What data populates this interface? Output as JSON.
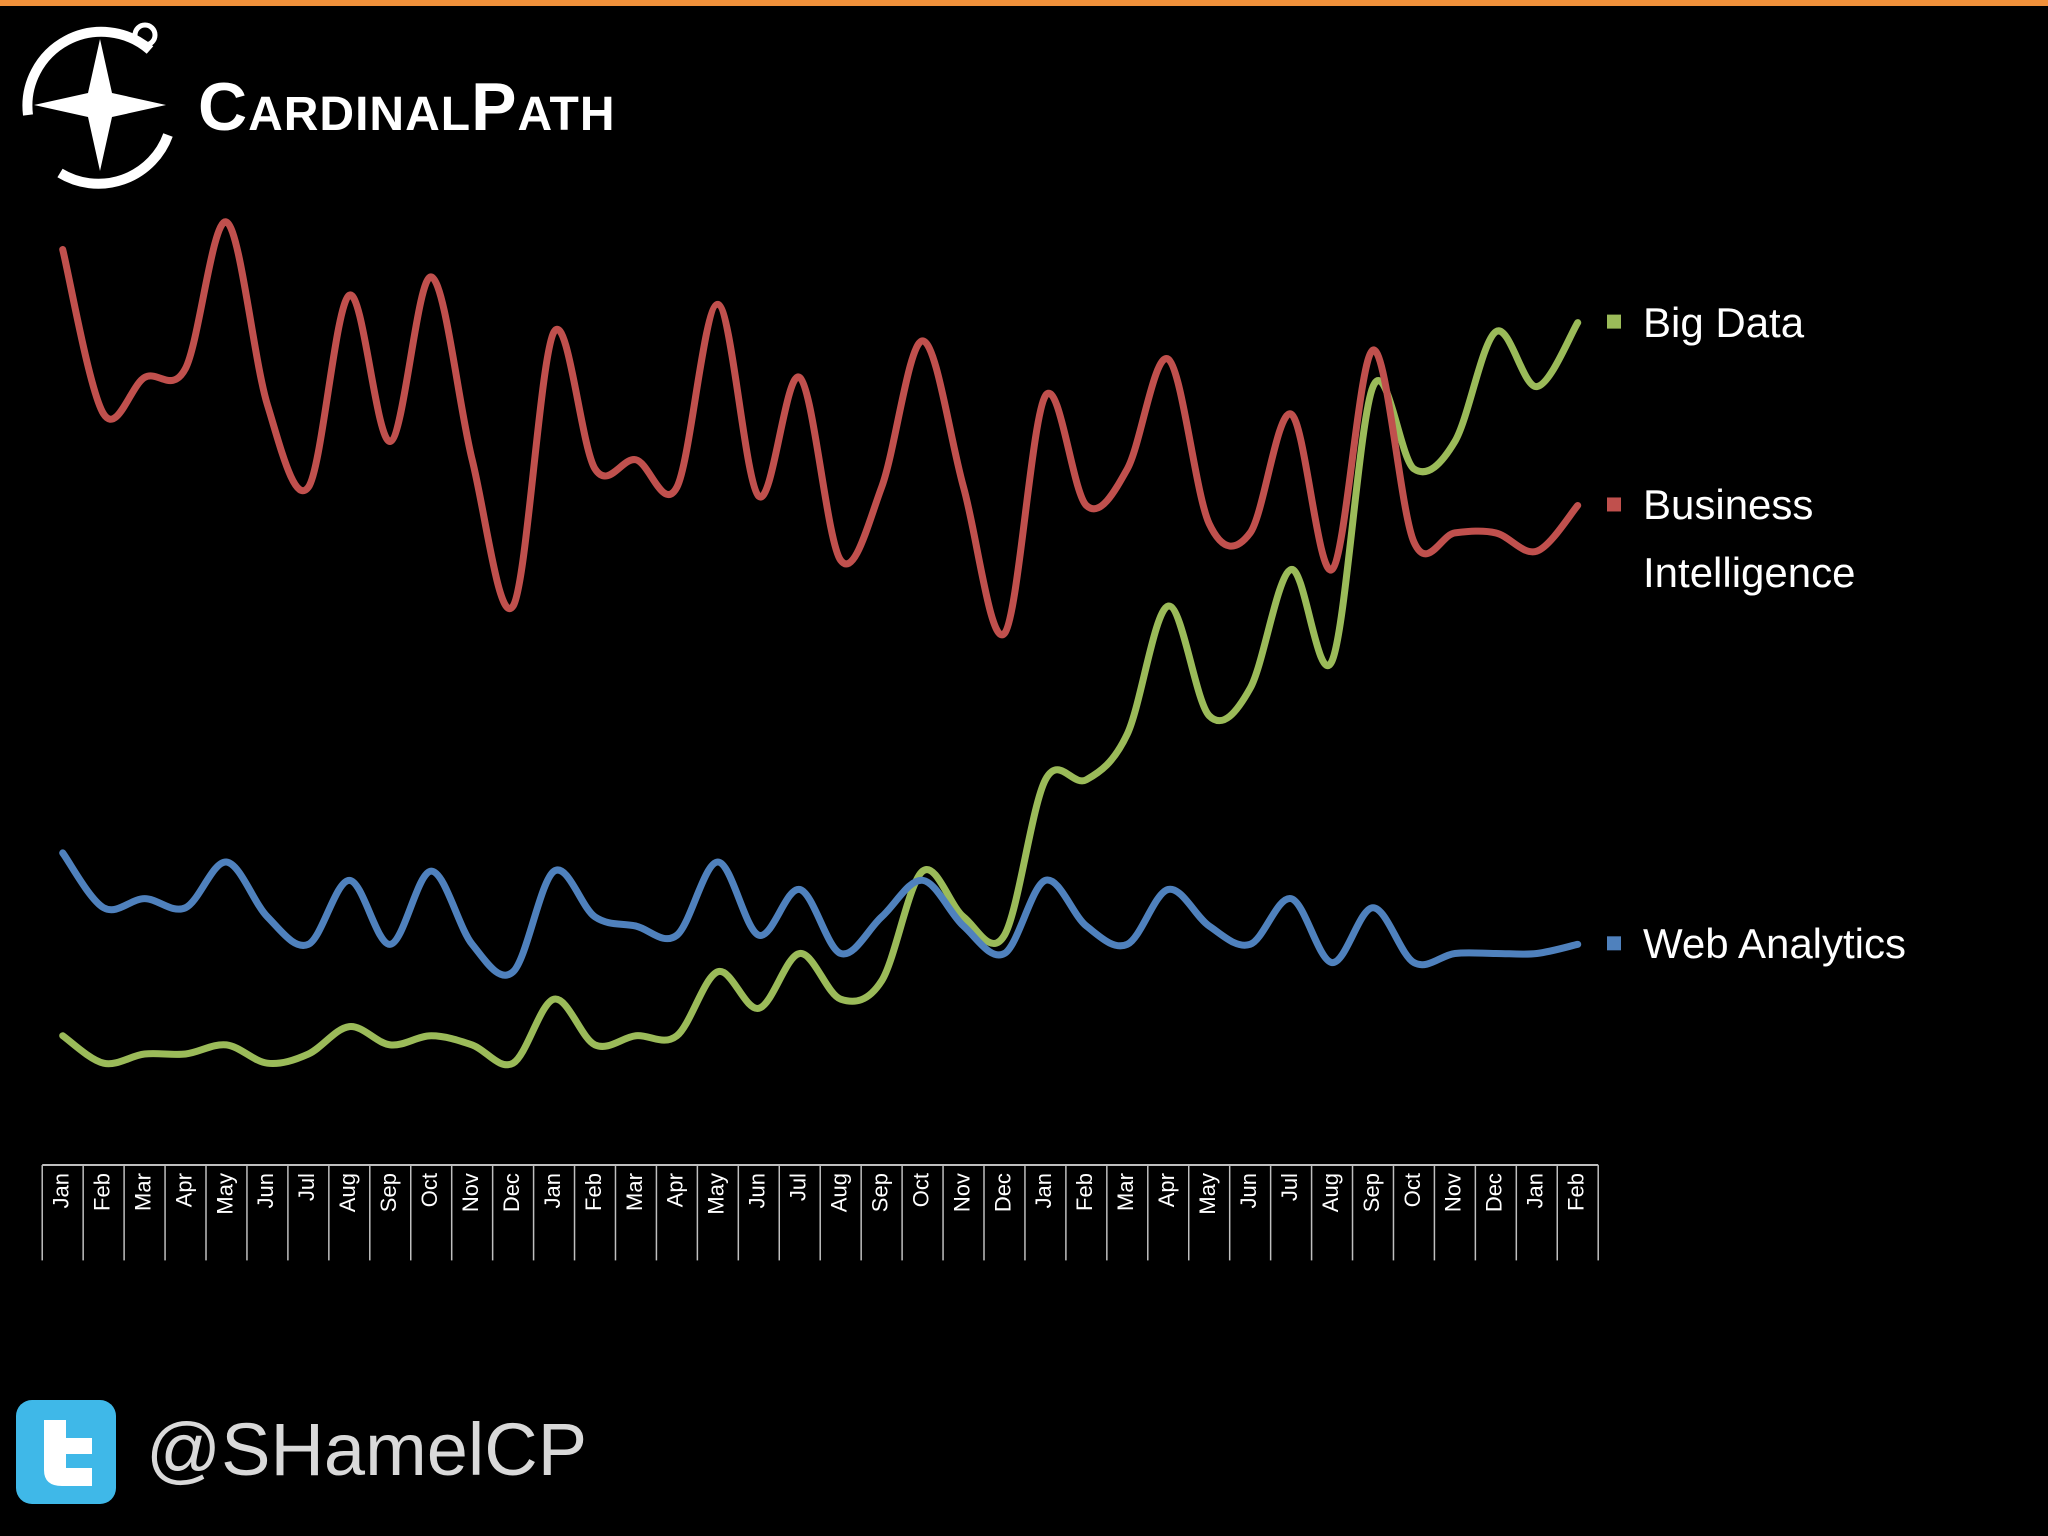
{
  "logo": "CardinalPath",
  "handle": "@SHamelCP",
  "chart_data": {
    "type": "line",
    "categories": [
      "Jan",
      "Feb",
      "Mar",
      "Apr",
      "May",
      "Jun",
      "Jul",
      "Aug",
      "Sep",
      "Oct",
      "Nov",
      "Dec",
      "Jan",
      "Feb",
      "Mar",
      "Apr",
      "May",
      "Jun",
      "Jul",
      "Aug",
      "Sep",
      "Oct",
      "Nov",
      "Dec",
      "Jan",
      "Feb",
      "Mar",
      "Apr",
      "May",
      "Jun",
      "Jul",
      "Aug",
      "Sep",
      "Oct",
      "Nov",
      "Dec",
      "Jan",
      "Feb"
    ],
    "ylim": [
      0,
      100
    ],
    "series": [
      {
        "name": "Big Data",
        "color": "#9bbb59",
        "values": [
          11,
          8,
          9,
          9,
          10,
          8,
          9,
          12,
          10,
          11,
          10,
          8,
          15,
          10,
          11,
          11,
          18,
          14,
          20,
          15,
          17,
          29,
          24,
          22,
          39,
          39,
          44,
          58,
          46,
          49,
          62,
          52,
          82,
          73,
          76,
          88,
          82,
          89
        ]
      },
      {
        "name": "Business Intelligence",
        "color": "#c0504d",
        "values": [
          97,
          79,
          83,
          84,
          100,
          80,
          71,
          92,
          76,
          94,
          74,
          58,
          88,
          73,
          74,
          71,
          91,
          70,
          83,
          63,
          71,
          87,
          71,
          55,
          81,
          69,
          73,
          85,
          67,
          66,
          79,
          62,
          86,
          65,
          66,
          66,
          64,
          69
        ]
      },
      {
        "name": "Web Analytics",
        "color": "#4f81bd",
        "values": [
          31,
          25,
          26,
          25,
          30,
          24,
          21,
          28,
          21,
          29,
          21,
          18,
          29,
          24,
          23,
          22,
          30,
          22,
          27,
          20,
          24,
          28,
          23,
          20,
          28,
          23,
          21,
          27,
          23,
          21,
          26,
          19,
          25,
          19,
          20,
          20,
          20,
          21
        ]
      }
    ]
  }
}
